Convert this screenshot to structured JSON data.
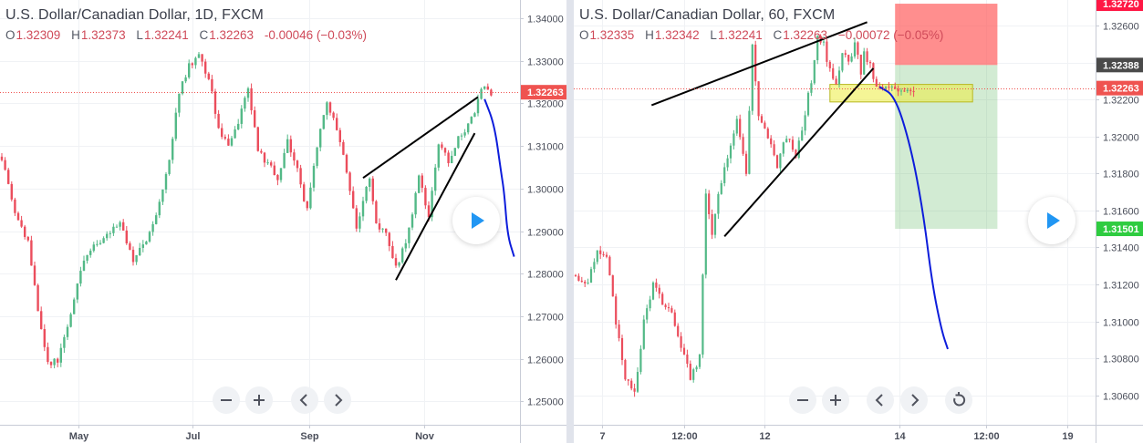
{
  "charts": [
    {
      "id": "left",
      "title": "U.S. Dollar/Canadian Dollar, 1D, FXCM",
      "ohlc": {
        "o_label": "O",
        "o": "1.32309",
        "h_label": "H",
        "h": "1.32373",
        "l_label": "L",
        "l": "1.32241",
        "c_label": "C",
        "c": "1.32263",
        "chg": "-0.00046 (−0.03%)"
      },
      "y_axis": {
        "min": 1.2445,
        "max": 1.3443,
        "ticks": [
          "1.34000",
          "1.33000",
          "1.32000",
          "1.31000",
          "1.30000",
          "1.29000",
          "1.28000",
          "1.27000",
          "1.26000",
          "1.25000"
        ]
      },
      "x_axis": {
        "labels": [
          {
            "text": "May",
            "pos": 0.15
          },
          {
            "text": "Jul",
            "pos": 0.37
          },
          {
            "text": "Sep",
            "pos": 0.595
          },
          {
            "text": "Nov",
            "pos": 0.815
          }
        ]
      },
      "price_line": {
        "value": 1.32263,
        "label": "1.32263",
        "color": "#ef5350"
      },
      "candles_n": 150,
      "waypoints": [
        [
          0,
          1.3075
        ],
        [
          4,
          1.2935
        ],
        [
          8,
          1.288
        ],
        [
          11,
          1.272
        ],
        [
          14,
          1.2585
        ],
        [
          17,
          1.2595
        ],
        [
          21,
          1.2705
        ],
        [
          24,
          1.2815
        ],
        [
          28,
          1.2865
        ],
        [
          32,
          1.2885
        ],
        [
          36,
          1.292
        ],
        [
          40,
          1.2835
        ],
        [
          44,
          1.288
        ],
        [
          48,
          1.2965
        ],
        [
          51,
          1.3075
        ],
        [
          54,
          1.322
        ],
        [
          57,
          1.329
        ],
        [
          60,
          1.3315
        ],
        [
          63,
          1.326
        ],
        [
          66,
          1.3145
        ],
        [
          69,
          1.3095
        ],
        [
          72,
          1.316
        ],
        [
          75,
          1.324
        ],
        [
          78,
          1.3085
        ],
        [
          81,
          1.306
        ],
        [
          84,
          1.3025
        ],
        [
          87,
          1.311
        ],
        [
          90,
          1.3045
        ],
        [
          93,
          1.2945
        ],
        [
          96,
          1.3105
        ],
        [
          99,
          1.321
        ],
        [
          102,
          1.314
        ],
        [
          105,
          1.3045
        ],
        [
          108,
          1.2905
        ],
        [
          112,
          1.3025
        ],
        [
          114,
          1.2915
        ],
        [
          117,
          1.289
        ],
        [
          120,
          1.2815
        ],
        [
          123,
          1.287
        ],
        [
          127,
          1.3025
        ],
        [
          130,
          1.2935
        ],
        [
          133,
          1.3105
        ],
        [
          136,
          1.3065
        ],
        [
          139,
          1.3115
        ],
        [
          142,
          1.3145
        ],
        [
          144,
          1.3185
        ],
        [
          146,
          1.324
        ],
        [
          149,
          1.3226
        ]
      ],
      "trendlines": [
        {
          "x1": 110,
          "y1": 1.3025,
          "x2": 145,
          "y2": 1.3215,
          "color": "#000000"
        },
        {
          "x1": 120,
          "y1": 1.2785,
          "x2": 144,
          "y2": 1.313,
          "color": "#000000"
        }
      ],
      "projection": [
        [
          147,
          1.321
        ],
        [
          150,
          1.315
        ],
        [
          152,
          1.304
        ],
        [
          153,
          1.299
        ],
        [
          154,
          1.289
        ],
        [
          156,
          1.284
        ]
      ],
      "projection_color": "#0d1ddb"
    },
    {
      "id": "right",
      "title": "U.S. Dollar/Canadian Dollar, 60, FXCM",
      "ohlc": {
        "o_label": "O",
        "o": "1.32335",
        "h_label": "H",
        "h": "1.32342",
        "l_label": "L",
        "l": "1.32241",
        "c_label": "C",
        "c": "1.32263",
        "chg": "−0.00072 (−0.05%)"
      },
      "y_axis": {
        "min": 1.3044,
        "max": 1.3274,
        "ticks": [
          "1.32600",
          "1.32400",
          "1.32200",
          "1.32000",
          "1.31800",
          "1.31600",
          "1.31400",
          "1.31200",
          "1.31000",
          "1.30800",
          "1.30600"
        ]
      },
      "x_axis": {
        "labels": [
          {
            "text": "7",
            "pos": 0.054
          },
          {
            "text": "12:00",
            "pos": 0.211
          },
          {
            "text": "12",
            "pos": 0.365
          },
          {
            "text": "14",
            "pos": 0.624
          },
          {
            "text": "12:00",
            "pos": 0.79
          },
          {
            "text": "19",
            "pos": 0.945
          }
        ]
      },
      "price_line": {
        "value": 1.32263,
        "label": "1.32263",
        "color": "#ef5350"
      },
      "candles_n": 110,
      "waypoints": [
        [
          0,
          1.3125
        ],
        [
          4,
          1.312
        ],
        [
          7,
          1.314
        ],
        [
          10,
          1.3135
        ],
        [
          13,
          1.31
        ],
        [
          16,
          1.307
        ],
        [
          19,
          1.306
        ],
        [
          22,
          1.31
        ],
        [
          25,
          1.312
        ],
        [
          28,
          1.311
        ],
        [
          31,
          1.3105
        ],
        [
          34,
          1.3085
        ],
        [
          37,
          1.307
        ],
        [
          40,
          1.308
        ],
        [
          42,
          1.317
        ],
        [
          44,
          1.3145
        ],
        [
          46,
          1.317
        ],
        [
          49,
          1.319
        ],
        [
          52,
          1.321
        ],
        [
          55,
          1.318
        ],
        [
          57,
          1.325
        ],
        [
          59,
          1.321
        ],
        [
          62,
          1.32
        ],
        [
          65,
          1.3185
        ],
        [
          68,
          1.32
        ],
        [
          71,
          1.319
        ],
        [
          73,
          1.3205
        ],
        [
          76,
          1.323
        ],
        [
          78,
          1.3255
        ],
        [
          80,
          1.325
        ],
        [
          82,
          1.3235
        ],
        [
          84,
          1.323
        ],
        [
          86,
          1.3245
        ],
        [
          88,
          1.324
        ],
        [
          90,
          1.325
        ],
        [
          92,
          1.3235
        ],
        [
          93,
          1.3245
        ],
        [
          95,
          1.3238
        ],
        [
          97,
          1.3226
        ]
      ],
      "trendlines": [
        {
          "x1": 24.5,
          "y1": 1.3217,
          "x2": 94,
          "y2": 1.3262,
          "color": "#000000"
        },
        {
          "x1": 48,
          "y1": 1.3146,
          "x2": 96,
          "y2": 1.3237,
          "color": "#000000"
        }
      ],
      "zones": [
        {
          "x1": 103,
          "x2": 136,
          "y1": 1.32388,
          "y2": 1.3272,
          "color": "#ff5252",
          "opacity": 0.65
        },
        {
          "x1": 103,
          "x2": 136,
          "y1": 1.31501,
          "y2": 1.32388,
          "color": "#4caf50",
          "opacity": 0.25
        },
        {
          "x1": 82,
          "x2": 128,
          "y1": 1.32188,
          "y2": 1.32283,
          "color": "#ecec40",
          "opacity": 0.55
        }
      ],
      "markers": [
        {
          "value": 1.3272,
          "label": "1.32720",
          "color": "#ff1744"
        },
        {
          "value": 1.32388,
          "label": "1.32388",
          "color": "#4a4a4a"
        },
        {
          "value": 1.31501,
          "label": "1.31501",
          "color": "#2ecc40"
        }
      ],
      "projection": [
        [
          98,
          1.3227
        ],
        [
          103,
          1.3222
        ],
        [
          108,
          1.3195
        ],
        [
          112,
          1.316
        ],
        [
          115,
          1.312
        ],
        [
          118,
          1.3095
        ],
        [
          120,
          1.3085
        ]
      ],
      "projection_color": "#0d1ddb"
    }
  ]
}
